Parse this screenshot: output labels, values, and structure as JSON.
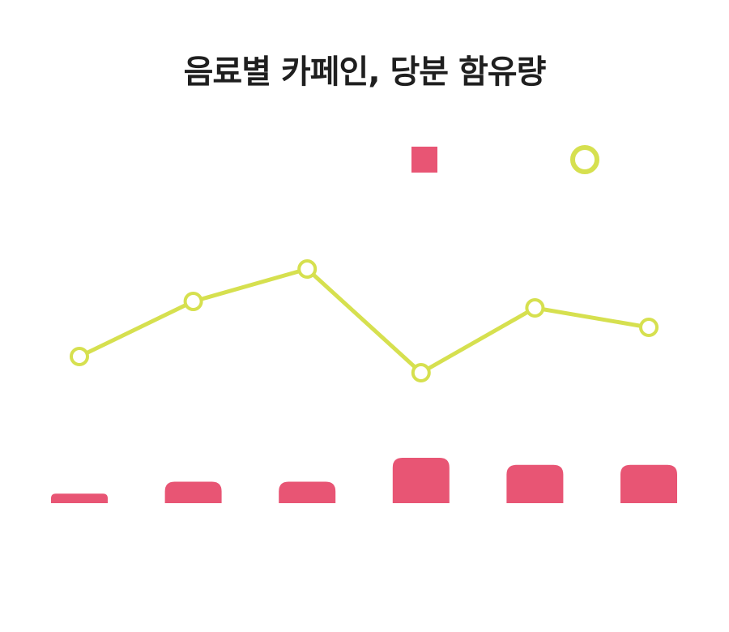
{
  "chart_data": {
    "type": "bar",
    "title": "음료별 카페인, 당분 함유량",
    "categories": [
      "",
      "",
      "",
      "",
      "",
      ""
    ],
    "series": [
      {
        "kind": "bar",
        "color": "#e85574",
        "values": [
          4,
          9,
          9,
          19,
          16,
          16
        ]
      },
      {
        "kind": "line",
        "color": "#d6e04f",
        "values": [
          45,
          62,
          72,
          40,
          60,
          54
        ]
      }
    ],
    "legend": "top-right",
    "grid": false
  }
}
